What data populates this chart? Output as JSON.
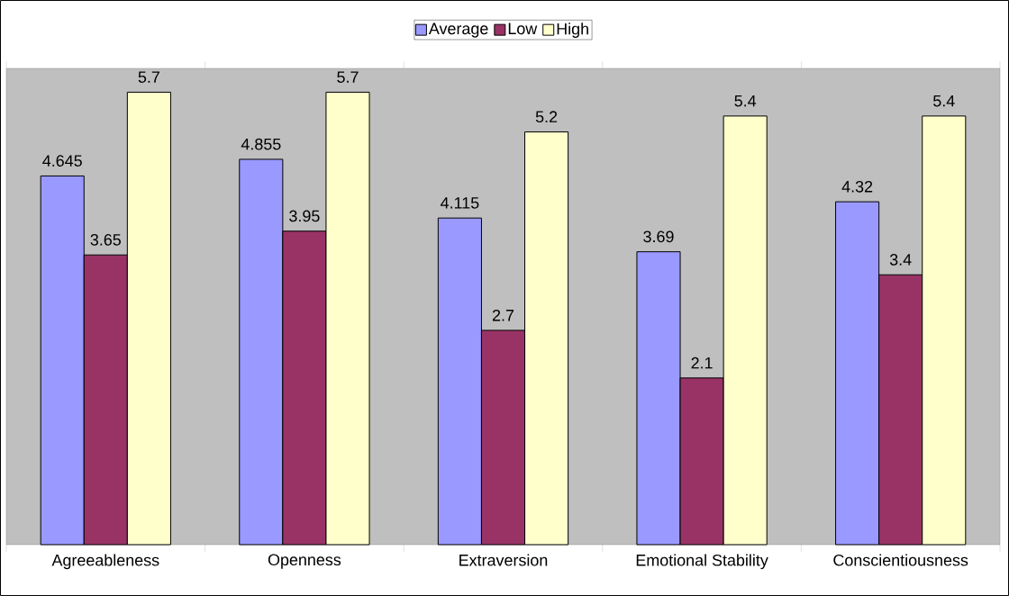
{
  "chart_data": {
    "type": "bar",
    "categories": [
      "Agreeableness",
      "Openness",
      "Extraversion",
      "Emotional Stability",
      "Conscientiousness"
    ],
    "series": [
      {
        "name": "Average",
        "color": "#9999ff",
        "values": [
          4.645,
          4.855,
          4.115,
          3.69,
          4.32
        ]
      },
      {
        "name": "Low",
        "color": "#993366",
        "values": [
          3.65,
          3.95,
          2.7,
          2.1,
          3.4
        ]
      },
      {
        "name": "High",
        "color": "#ffffcc",
        "values": [
          5.7,
          5.7,
          5.2,
          5.4,
          5.4
        ]
      }
    ],
    "ylim": [
      0,
      6
    ],
    "data_labels": true,
    "legend": "top",
    "tick_labels": "x"
  }
}
